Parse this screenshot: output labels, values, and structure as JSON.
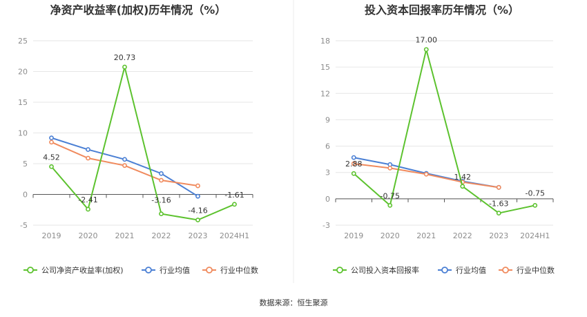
{
  "source_label": "数据来源：恒生聚源",
  "chart_data": [
    {
      "type": "line",
      "title": "净资产收益率(加权)历年情况（%）",
      "categories": [
        "2019",
        "2020",
        "2021",
        "2022",
        "2023",
        "2024H1"
      ],
      "ylim": [
        -5,
        25
      ],
      "yticks": [
        "25",
        "20",
        "15",
        "10",
        "5",
        "0",
        "-5"
      ],
      "grid": true,
      "legend_position": "bottom-left",
      "series": [
        {
          "name": "公司净资产收益率(加权)",
          "color": "#5cc22e",
          "values": [
            4.52,
            -2.41,
            20.73,
            -3.16,
            -4.16,
            -1.61
          ],
          "labels": [
            "4.52",
            "-2.41",
            "20.73",
            "-3.16",
            "-4.16",
            "-1.61"
          ]
        },
        {
          "name": "行业均值",
          "color": "#4a7fd4",
          "values": [
            9.2,
            7.3,
            5.7,
            3.4,
            -0.3,
            null
          ]
        },
        {
          "name": "行业中位数",
          "color": "#f08a5d",
          "values": [
            8.5,
            5.9,
            4.7,
            2.3,
            1.4,
            null
          ]
        }
      ]
    },
    {
      "type": "line",
      "title": "投入资本回报率历年情况（%）",
      "categories": [
        "2019",
        "2020",
        "2021",
        "2022",
        "2023",
        "2024H1"
      ],
      "ylim": [
        -3,
        18
      ],
      "yticks": [
        "18",
        "15",
        "12",
        "9",
        "6",
        "3",
        "0",
        "-3"
      ],
      "grid": true,
      "legend_position": "bottom-left",
      "series": [
        {
          "name": "公司投入资本回报率",
          "color": "#5cc22e",
          "values": [
            2.88,
            -0.75,
            17.0,
            1.42,
            -1.63,
            -0.75
          ],
          "labels": [
            "2.88",
            "-0.75",
            "17.00",
            "1.42",
            "-1.63",
            "-0.75"
          ]
        },
        {
          "name": "行业均值",
          "color": "#4a7fd4",
          "values": [
            4.7,
            3.9,
            2.9,
            2.0,
            1.3,
            null
          ]
        },
        {
          "name": "行业中位数",
          "color": "#f08a5d",
          "values": [
            4.0,
            3.5,
            2.8,
            1.9,
            1.3,
            null
          ]
        }
      ]
    }
  ]
}
